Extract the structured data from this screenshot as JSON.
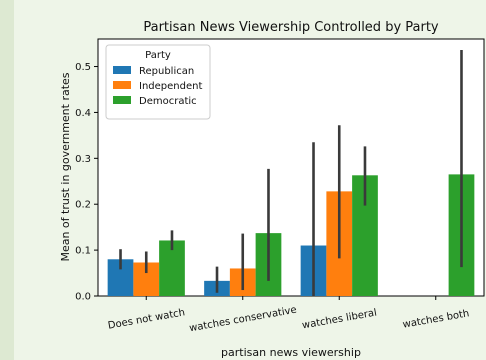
{
  "chart_data": {
    "type": "bar",
    "title": "Partisan News Viewership Controlled by Party",
    "xlabel": "partisan news viewership",
    "ylabel": "Mean of trust in government rates",
    "categories": [
      "Does not watch",
      "watches conservative",
      "watches liberal",
      "watches both"
    ],
    "ylim": [
      0,
      0.56
    ],
    "yticks": [
      0.0,
      0.1,
      0.2,
      0.3,
      0.4,
      0.5
    ],
    "ytick_labels": [
      "0.0",
      "0.1",
      "0.2",
      "0.3",
      "0.4",
      "0.5"
    ],
    "grid": false,
    "legend": {
      "title": "Party",
      "placement": "top-left"
    },
    "series": [
      {
        "name": "Republican",
        "color": "#1f77b4",
        "values": [
          0.08,
          0.033,
          0.11,
          null
        ],
        "ci_low": [
          0.058,
          0.007,
          0.0,
          null
        ],
        "ci_high": [
          0.102,
          0.064,
          0.335,
          null
        ]
      },
      {
        "name": "Independent",
        "color": "#ff7f0e",
        "values": [
          0.073,
          0.06,
          0.228,
          null
        ],
        "ci_low": [
          0.05,
          0.013,
          0.082,
          null
        ],
        "ci_high": [
          0.097,
          0.136,
          0.372,
          null
        ]
      },
      {
        "name": "Democratic",
        "color": "#2ca02c",
        "values": [
          0.121,
          0.137,
          0.263,
          0.265
        ],
        "ci_low": [
          0.1,
          0.033,
          0.197,
          0.063
        ],
        "ci_high": [
          0.143,
          0.277,
          0.326,
          0.536
        ]
      }
    ]
  }
}
